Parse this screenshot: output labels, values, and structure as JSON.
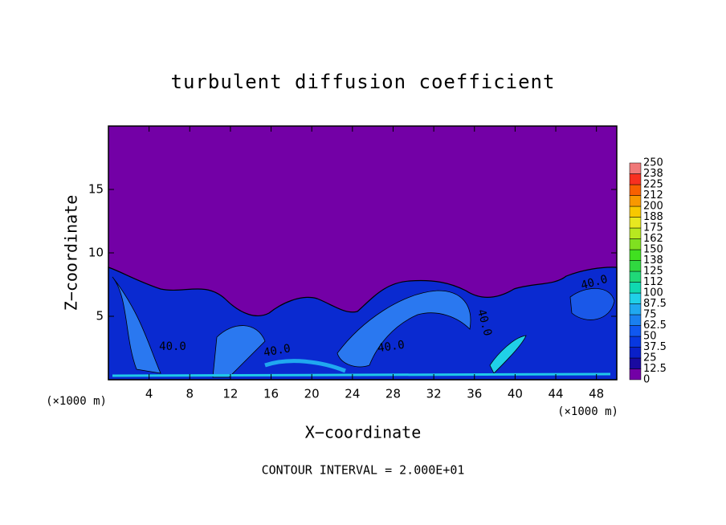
{
  "chart_data": {
    "type": "contour",
    "title": "turbulent diffusion coefficient",
    "xlabel": "X−coordinate",
    "ylabel": "Z−coordinate",
    "x_unit_label": "(×1000 m)",
    "y_unit_label": "(×1000 m)",
    "footer": "CONTOUR INTERVAL = 2.000E+01",
    "xlim": [
      0,
      50
    ],
    "xticks": [
      4,
      8,
      12,
      16,
      20,
      24,
      28,
      32,
      36,
      40,
      44,
      48
    ],
    "ylim": [
      0,
      20
    ],
    "yticks": [
      5,
      10,
      15
    ],
    "contour_labels": [
      "40.0",
      "40.0",
      "40.0",
      "40.0",
      "40.0"
    ],
    "colorbar": {
      "range": [
        0,
        250
      ],
      "levels": [
        0,
        12.5,
        25,
        37.5,
        50,
        62.5,
        75,
        87.5,
        100,
        {
          "value": 112.5,
          "label": "112"
        },
        125,
        {
          "value": 137.5,
          "label": "138"
        },
        150,
        {
          "value": 162.5,
          "label": "162"
        },
        175,
        {
          "value": 187.5,
          "label": "188"
        },
        200,
        {
          "value": 212.5,
          "label": "212"
        },
        225,
        {
          "value": 237.5,
          "label": "238"
        },
        250
      ],
      "colors": [
        "#7300a6",
        "#1a0aa0",
        "#0a20c8",
        "#0838e0",
        "#1058f0",
        "#1a80f0",
        "#20a8f0",
        "#20d0e8",
        "#10d8b0",
        "#20d878",
        "#30d840",
        "#40e020",
        "#80e020",
        "#b8e820",
        "#e8e820",
        "#f8c800",
        "#f89800",
        "#f86000",
        "#f83020",
        "#f07878"
      ]
    }
  }
}
